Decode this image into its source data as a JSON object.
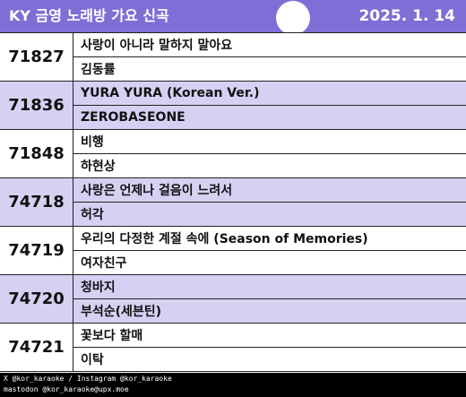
{
  "header": {
    "title": "KY 금영 노래방 가요 신곡",
    "date": "2025. 1. 14"
  },
  "colors": {
    "header_bg": "#7d6fd6",
    "alt_row_bg": "#d6d1f3"
  },
  "entries": [
    {
      "number": "71827",
      "song": "사랑이 아니라 말하지 말아요",
      "artist": "김동률"
    },
    {
      "number": "71836",
      "song": "YURA YURA (Korean Ver.)",
      "artist": "ZEROBASEONE"
    },
    {
      "number": "71848",
      "song": "비행",
      "artist": "하현상"
    },
    {
      "number": "74718",
      "song": "사랑은 언제나 걸음이 느려서",
      "artist": "허각"
    },
    {
      "number": "74719",
      "song": "우리의 다정한 계절 속에 (Season of Memories)",
      "artist": "여자친구"
    },
    {
      "number": "74720",
      "song": "청바지",
      "artist": "부석순(세븐틴)"
    },
    {
      "number": "74721",
      "song": "꽃보다 할매",
      "artist": "이탁"
    }
  ],
  "footer": {
    "line1": "X @kor_karaoke / Instagram @kor_karaoke",
    "line2": "mastodon @kor_karaoke@upx.moe"
  }
}
